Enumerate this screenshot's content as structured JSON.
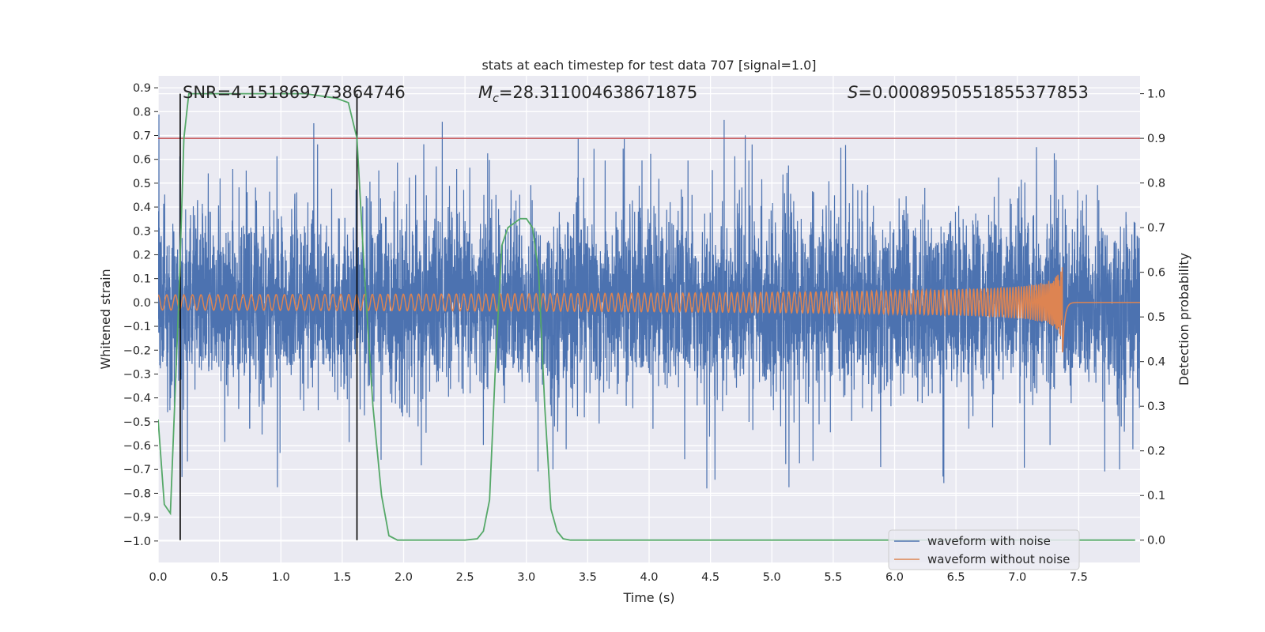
{
  "chart_data": {
    "type": "line",
    "title": "stats at each timestep for test data 707 [signal=1.0]",
    "xlabel": "Time (s)",
    "ylabel": "Whitened strain",
    "y2label": "Detection probability",
    "xlim": [
      0.0,
      8.0
    ],
    "ylim": [
      -1.09,
      0.95
    ],
    "y2lim": [
      -0.05,
      1.04
    ],
    "xticks": [
      "0.0",
      "0.5",
      "1.0",
      "1.5",
      "2.0",
      "2.5",
      "3.0",
      "3.5",
      "4.0",
      "4.5",
      "5.0",
      "5.5",
      "6.0",
      "6.5",
      "7.0",
      "7.5"
    ],
    "yticks": [
      "0.9",
      "0.8",
      "0.7",
      "0.6",
      "0.5",
      "0.4",
      "0.3",
      "0.2",
      "0.1",
      "0.0",
      "−0.1",
      "−0.2",
      "−0.3",
      "−0.4",
      "−0.5",
      "−0.6",
      "−0.7",
      "−0.8",
      "−0.9",
      "−1.0"
    ],
    "y2ticks": [
      "1.0",
      "0.9",
      "0.8",
      "0.7",
      "0.6",
      "0.5",
      "0.4",
      "0.3",
      "0.2",
      "0.1",
      "0.0"
    ],
    "grid": true,
    "legend_position": "lower-right",
    "annotations": {
      "snr": "SNR=4.151869773864746",
      "mc": "=28.311004638671875",
      "mc_symbol": "M",
      "mc_sub": "c",
      "s": "=0.0008950551855377853",
      "s_symbol": "S"
    },
    "threshold": 0.9,
    "vlines": [
      0.18,
      1.62
    ],
    "series": [
      {
        "name": "waveform with noise",
        "color": "#4c72b0",
        "kind": "noise",
        "x_end": 8.0,
        "max_amp": 0.85,
        "min_amp": -0.99
      },
      {
        "name": "waveform without noise",
        "color": "#dd8452",
        "kind": "chirp",
        "merger_time": 7.37,
        "peak_amp": 0.21
      },
      {
        "color": "#55a868",
        "axis": "y2",
        "x": [
          0.0,
          0.05,
          0.1,
          0.17,
          0.21,
          0.25,
          0.3,
          0.6,
          0.9,
          1.2,
          1.45,
          1.55,
          1.62,
          1.68,
          1.75,
          1.82,
          1.88,
          1.95,
          2.05,
          2.3,
          2.5,
          2.6,
          2.65,
          2.7,
          2.75,
          2.8,
          2.85,
          2.9,
          2.95,
          3.0,
          3.05,
          3.1,
          3.15,
          3.2,
          3.25,
          3.3,
          3.36,
          3.45,
          4.0,
          5.0,
          6.0,
          7.0,
          7.5,
          7.8,
          7.96
        ],
        "y": [
          0.27,
          0.08,
          0.06,
          0.55,
          0.9,
          1.0,
          1.0,
          1.0,
          1.0,
          1.0,
          0.99,
          0.98,
          0.9,
          0.6,
          0.3,
          0.1,
          0.01,
          0.0,
          0.0,
          0.0,
          0.0,
          0.003,
          0.02,
          0.09,
          0.4,
          0.66,
          0.7,
          0.71,
          0.72,
          0.72,
          0.7,
          0.6,
          0.3,
          0.07,
          0.02,
          0.003,
          0.0,
          0.0,
          0.0,
          0.0,
          0.0,
          0.0,
          0.0,
          0.0,
          0.0
        ]
      }
    ]
  }
}
